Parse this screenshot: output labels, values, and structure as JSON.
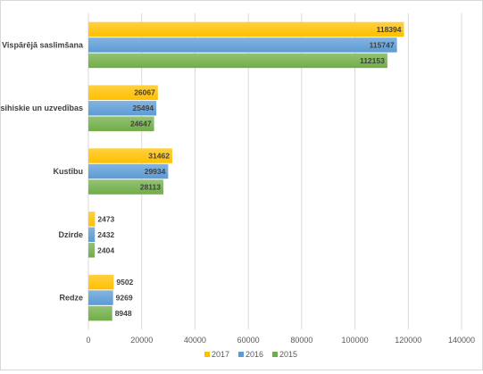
{
  "chart_data": {
    "type": "bar",
    "orientation": "horizontal",
    "categories": [
      "Vispārējā saslimšana",
      "Psihiskie un uzvedības",
      "Kustību",
      "Dzirde",
      "Redze"
    ],
    "series": [
      {
        "name": "2017",
        "color": "#ffc000",
        "values": [
          118394,
          26067,
          31462,
          2473,
          9502
        ]
      },
      {
        "name": "2016",
        "color": "#5b9bd5",
        "values": [
          115747,
          25494,
          29934,
          2432,
          9269
        ]
      },
      {
        "name": "2015",
        "color": "#70ad47",
        "values": [
          112153,
          24647,
          28113,
          2404,
          8948
        ]
      }
    ],
    "x_ticks": [
      "0",
      "20000",
      "40000",
      "60000",
      "80000",
      "100000",
      "120000",
      "140000"
    ],
    "xlim": [
      0,
      140000
    ],
    "grid": "vertical",
    "legend_position": "bottom",
    "data_labels": true,
    "title": "",
    "xlabel": "",
    "ylabel": ""
  }
}
